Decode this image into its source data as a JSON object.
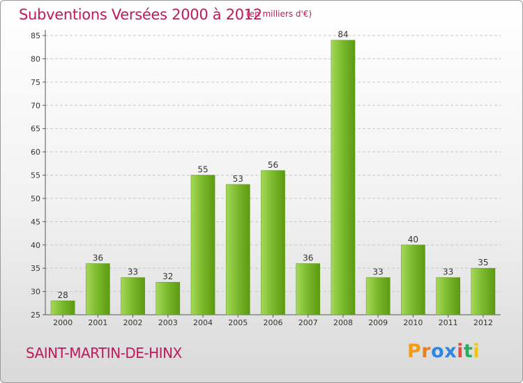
{
  "header": {
    "title": "Subventions Versées 2000 à 2012",
    "subtitle": "(en milliers d'€)"
  },
  "footer": {
    "commune": "SAINT-MARTIN-DE-HINX",
    "logo_letters": [
      "P",
      "r",
      "o",
      "x",
      "i",
      "t",
      "i"
    ],
    "logo_colors": [
      "#f39c12",
      "#e67e22",
      "#2e86de",
      "#2e86de",
      "#e74c3c",
      "#27ae60",
      "#f1c40f"
    ]
  },
  "chart_data": {
    "type": "bar",
    "title": "Subventions Versées 2000 à 2012",
    "subtitle": "(en milliers d'€)",
    "xlabel": "",
    "ylabel": "",
    "categories": [
      "2000",
      "2001",
      "2002",
      "2003",
      "2004",
      "2005",
      "2006",
      "2007",
      "2008",
      "2009",
      "2010",
      "2011",
      "2012"
    ],
    "values": [
      28,
      36,
      33,
      32,
      55,
      53,
      56,
      36,
      84,
      33,
      40,
      33,
      35
    ],
    "ylim": [
      25,
      85
    ],
    "yticks": [
      25,
      30,
      35,
      40,
      45,
      50,
      55,
      60,
      65,
      70,
      75,
      80,
      85
    ],
    "grid": true,
    "bar_color": "#7cbb2e",
    "bar_color_light": "#a6d85a",
    "bar_color_dark": "#5c9a12"
  }
}
